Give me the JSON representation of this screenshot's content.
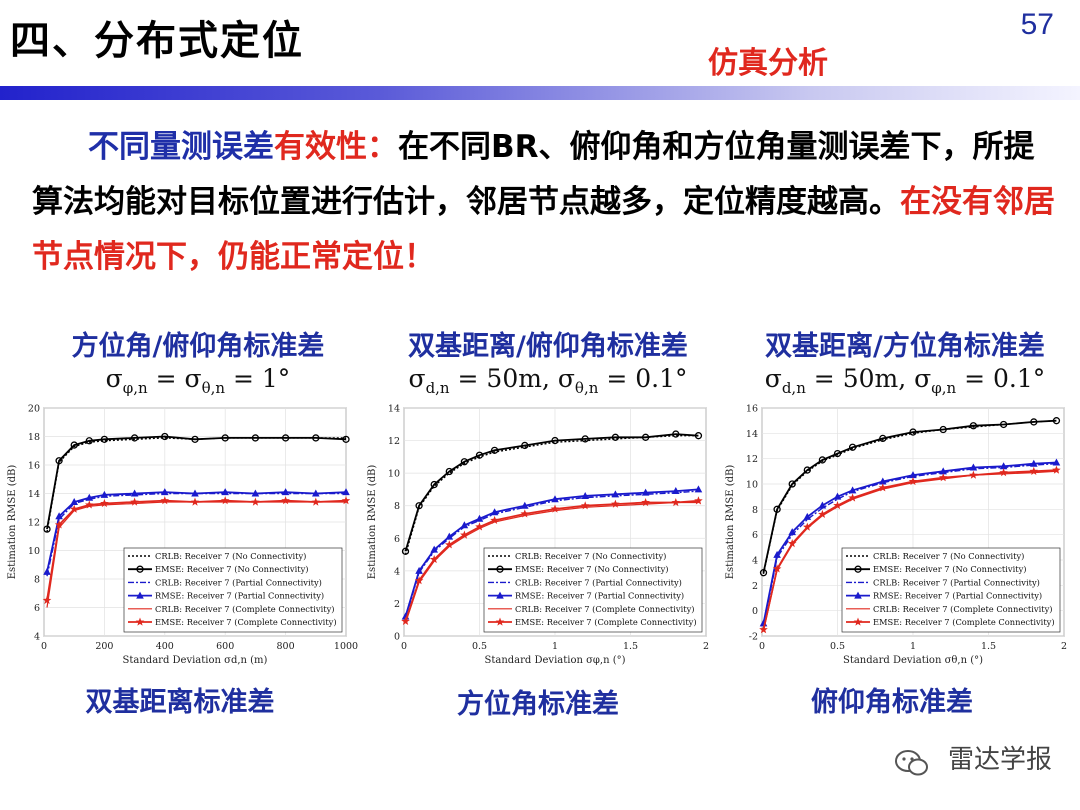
{
  "header": {
    "title": "四、分布式定位",
    "page_number": "57",
    "section_tag": "仿真分析"
  },
  "body_text": {
    "lead_blue": "不同量测误差",
    "lead_red": "有效性：",
    "text_1": "在不同BR、俯仰角和方位角量测误差下，所提算法均能对目标位置进行估计，邻居节点越多，定位精度越高。",
    "text_2_red": "在没有邻居节点情况下，仍能正常定位！"
  },
  "panels": [
    {
      "title": "方位角/俯仰角标准差",
      "formula": "σ_{φ,n} = σ_{θ,n} = 1°",
      "caption": "双基距离标准差"
    },
    {
      "title": "双基距离/俯仰角标准差",
      "formula": "σ_{d,n} = 50m, σ_{θ,n} = 0.1°",
      "caption": "方位角标准差"
    },
    {
      "title": "双基距离/方位角标准差",
      "formula": "σ_{d,n} = 50m, σ_{φ,n} = 0.1°",
      "caption": "俯仰角标准差"
    }
  ],
  "watermark": "雷达学报",
  "colors": {
    "blue": "#1f2fa8",
    "red": "#e0281e",
    "black": "#000000"
  },
  "chart_data": [
    {
      "type": "line",
      "xlabel": "Standard Deviation σ_{d,n} (m)",
      "ylabel": "Estimation RMSE (dB)",
      "xlim": [
        0,
        1000
      ],
      "ylim": [
        4,
        20
      ],
      "xticks": [
        0,
        200,
        400,
        600,
        800,
        1000
      ],
      "yticks": [
        4,
        6,
        8,
        10,
        12,
        14,
        16,
        18,
        20
      ],
      "x": [
        10,
        50,
        100,
        150,
        200,
        300,
        400,
        500,
        600,
        700,
        800,
        900,
        1000
      ],
      "series": [
        {
          "name": "CRLB: Receiver 7 (No Connectivity)",
          "values": [
            11.3,
            16.2,
            17.3,
            17.6,
            17.7,
            17.8,
            17.9,
            17.8,
            17.9,
            17.9,
            17.9,
            17.9,
            17.9
          ]
        },
        {
          "name": "EMSE: Receiver 7 (No Connectivity)",
          "values": [
            11.5,
            16.3,
            17.4,
            17.7,
            17.8,
            17.9,
            18.0,
            17.8,
            17.9,
            17.9,
            17.9,
            17.9,
            17.8
          ]
        },
        {
          "name": "CRLB: Receiver 7 (Partial Connectivity)",
          "values": [
            8.2,
            12.2,
            13.3,
            13.6,
            13.8,
            13.9,
            14.0,
            14.0,
            14.0,
            14.0,
            14.0,
            14.0,
            14.0
          ]
        },
        {
          "name": "RMSE: Receiver 7 (Partial Connectivity)",
          "values": [
            8.5,
            12.4,
            13.4,
            13.7,
            13.9,
            14.0,
            14.1,
            14.0,
            14.1,
            14.0,
            14.1,
            14.0,
            14.1
          ]
        },
        {
          "name": "CRLB: Receiver 7 (Complete Connectivity)",
          "values": [
            6.0,
            11.6,
            12.8,
            13.1,
            13.2,
            13.3,
            13.4,
            13.4,
            13.4,
            13.4,
            13.4,
            13.4,
            13.4
          ]
        },
        {
          "name": "EMSE: Receiver 7 (Complete Connectivity)",
          "values": [
            6.5,
            11.8,
            12.9,
            13.2,
            13.3,
            13.4,
            13.5,
            13.4,
            13.5,
            13.4,
            13.5,
            13.4,
            13.5
          ]
        }
      ]
    },
    {
      "type": "line",
      "xlabel": "Standard Deviation σ_{φ,n} (°)",
      "ylabel": "Estimation RMSE (dB)",
      "xlim": [
        0,
        2
      ],
      "ylim": [
        0,
        14
      ],
      "xticks": [
        0,
        0.5,
        1,
        1.5,
        2
      ],
      "yticks": [
        0,
        2,
        4,
        6,
        8,
        10,
        12,
        14
      ],
      "x": [
        0.01,
        0.1,
        0.2,
        0.3,
        0.4,
        0.5,
        0.6,
        0.8,
        1.0,
        1.2,
        1.4,
        1.6,
        1.8,
        1.95
      ],
      "series": [
        {
          "name": "CRLB: Receiver 7 (No Connectivity)",
          "values": [
            5.0,
            7.9,
            9.2,
            10.0,
            10.6,
            11.0,
            11.3,
            11.6,
            11.9,
            12.0,
            12.1,
            12.2,
            12.3,
            12.3
          ]
        },
        {
          "name": "EMSE: Receiver 7 (No Connectivity)",
          "values": [
            5.2,
            8.0,
            9.3,
            10.1,
            10.7,
            11.1,
            11.4,
            11.7,
            12.0,
            12.1,
            12.2,
            12.2,
            12.4,
            12.3
          ]
        },
        {
          "name": "CRLB: Receiver 7 (Partial Connectivity)",
          "values": [
            1.1,
            3.9,
            5.2,
            6.0,
            6.7,
            7.1,
            7.5,
            7.9,
            8.3,
            8.5,
            8.6,
            8.7,
            8.8,
            8.9
          ]
        },
        {
          "name": "RMSE: Receiver 7 (Partial Connectivity)",
          "values": [
            1.2,
            4.0,
            5.3,
            6.1,
            6.8,
            7.2,
            7.6,
            8.0,
            8.4,
            8.6,
            8.7,
            8.8,
            8.9,
            9.0
          ]
        },
        {
          "name": "CRLB: Receiver 7 (Complete Connectivity)",
          "values": [
            0.8,
            3.3,
            4.6,
            5.5,
            6.1,
            6.6,
            7.0,
            7.4,
            7.7,
            7.9,
            8.0,
            8.1,
            8.2,
            8.2
          ]
        },
        {
          "name": "EMSE: Receiver 7 (Complete Connectivity)",
          "values": [
            0.9,
            3.4,
            4.7,
            5.6,
            6.2,
            6.7,
            7.1,
            7.5,
            7.8,
            8.0,
            8.1,
            8.2,
            8.2,
            8.3
          ]
        }
      ]
    },
    {
      "type": "line",
      "xlabel": "Standard Deviation σ_{θ,n} (°)",
      "ylabel": "Estimation RMSE (dB)",
      "xlim": [
        0,
        2
      ],
      "ylim": [
        -2,
        16
      ],
      "xticks": [
        0,
        0.5,
        1,
        1.5,
        2
      ],
      "yticks": [
        -2,
        0,
        2,
        4,
        6,
        8,
        10,
        12,
        14,
        16
      ],
      "x": [
        0.01,
        0.1,
        0.2,
        0.3,
        0.4,
        0.5,
        0.6,
        0.8,
        1.0,
        1.2,
        1.4,
        1.6,
        1.8,
        1.95
      ],
      "series": [
        {
          "name": "CRLB: Receiver 7 (No Connectivity)",
          "values": [
            2.9,
            7.9,
            9.9,
            11.0,
            11.8,
            12.3,
            12.8,
            13.5,
            14.0,
            14.3,
            14.5,
            14.7,
            14.9,
            15.0
          ]
        },
        {
          "name": "EMSE: Receiver 7 (No Connectivity)",
          "values": [
            3.0,
            8.0,
            10.0,
            11.1,
            11.9,
            12.4,
            12.9,
            13.6,
            14.1,
            14.3,
            14.6,
            14.7,
            14.9,
            15.0
          ]
        },
        {
          "name": "CRLB: Receiver 7 (Partial Connectivity)",
          "values": [
            -1.2,
            4.2,
            6.0,
            7.2,
            8.1,
            8.8,
            9.4,
            10.1,
            10.6,
            10.9,
            11.2,
            11.3,
            11.5,
            11.6
          ]
        },
        {
          "name": "RMSE: Receiver 7 (Partial Connectivity)",
          "values": [
            -1.0,
            4.4,
            6.2,
            7.4,
            8.3,
            9.0,
            9.5,
            10.2,
            10.7,
            11.0,
            11.3,
            11.4,
            11.6,
            11.7
          ]
        },
        {
          "name": "CRLB: Receiver 7 (Complete Connectivity)",
          "values": [
            -1.6,
            3.2,
            5.2,
            6.5,
            7.5,
            8.2,
            8.8,
            9.6,
            10.1,
            10.4,
            10.7,
            10.8,
            10.9,
            11.0
          ]
        },
        {
          "name": "EMSE: Receiver 7 (Complete Connectivity)",
          "values": [
            -1.5,
            3.3,
            5.3,
            6.6,
            7.6,
            8.3,
            8.9,
            9.7,
            10.2,
            10.5,
            10.7,
            10.9,
            11.0,
            11.1
          ]
        }
      ]
    }
  ]
}
